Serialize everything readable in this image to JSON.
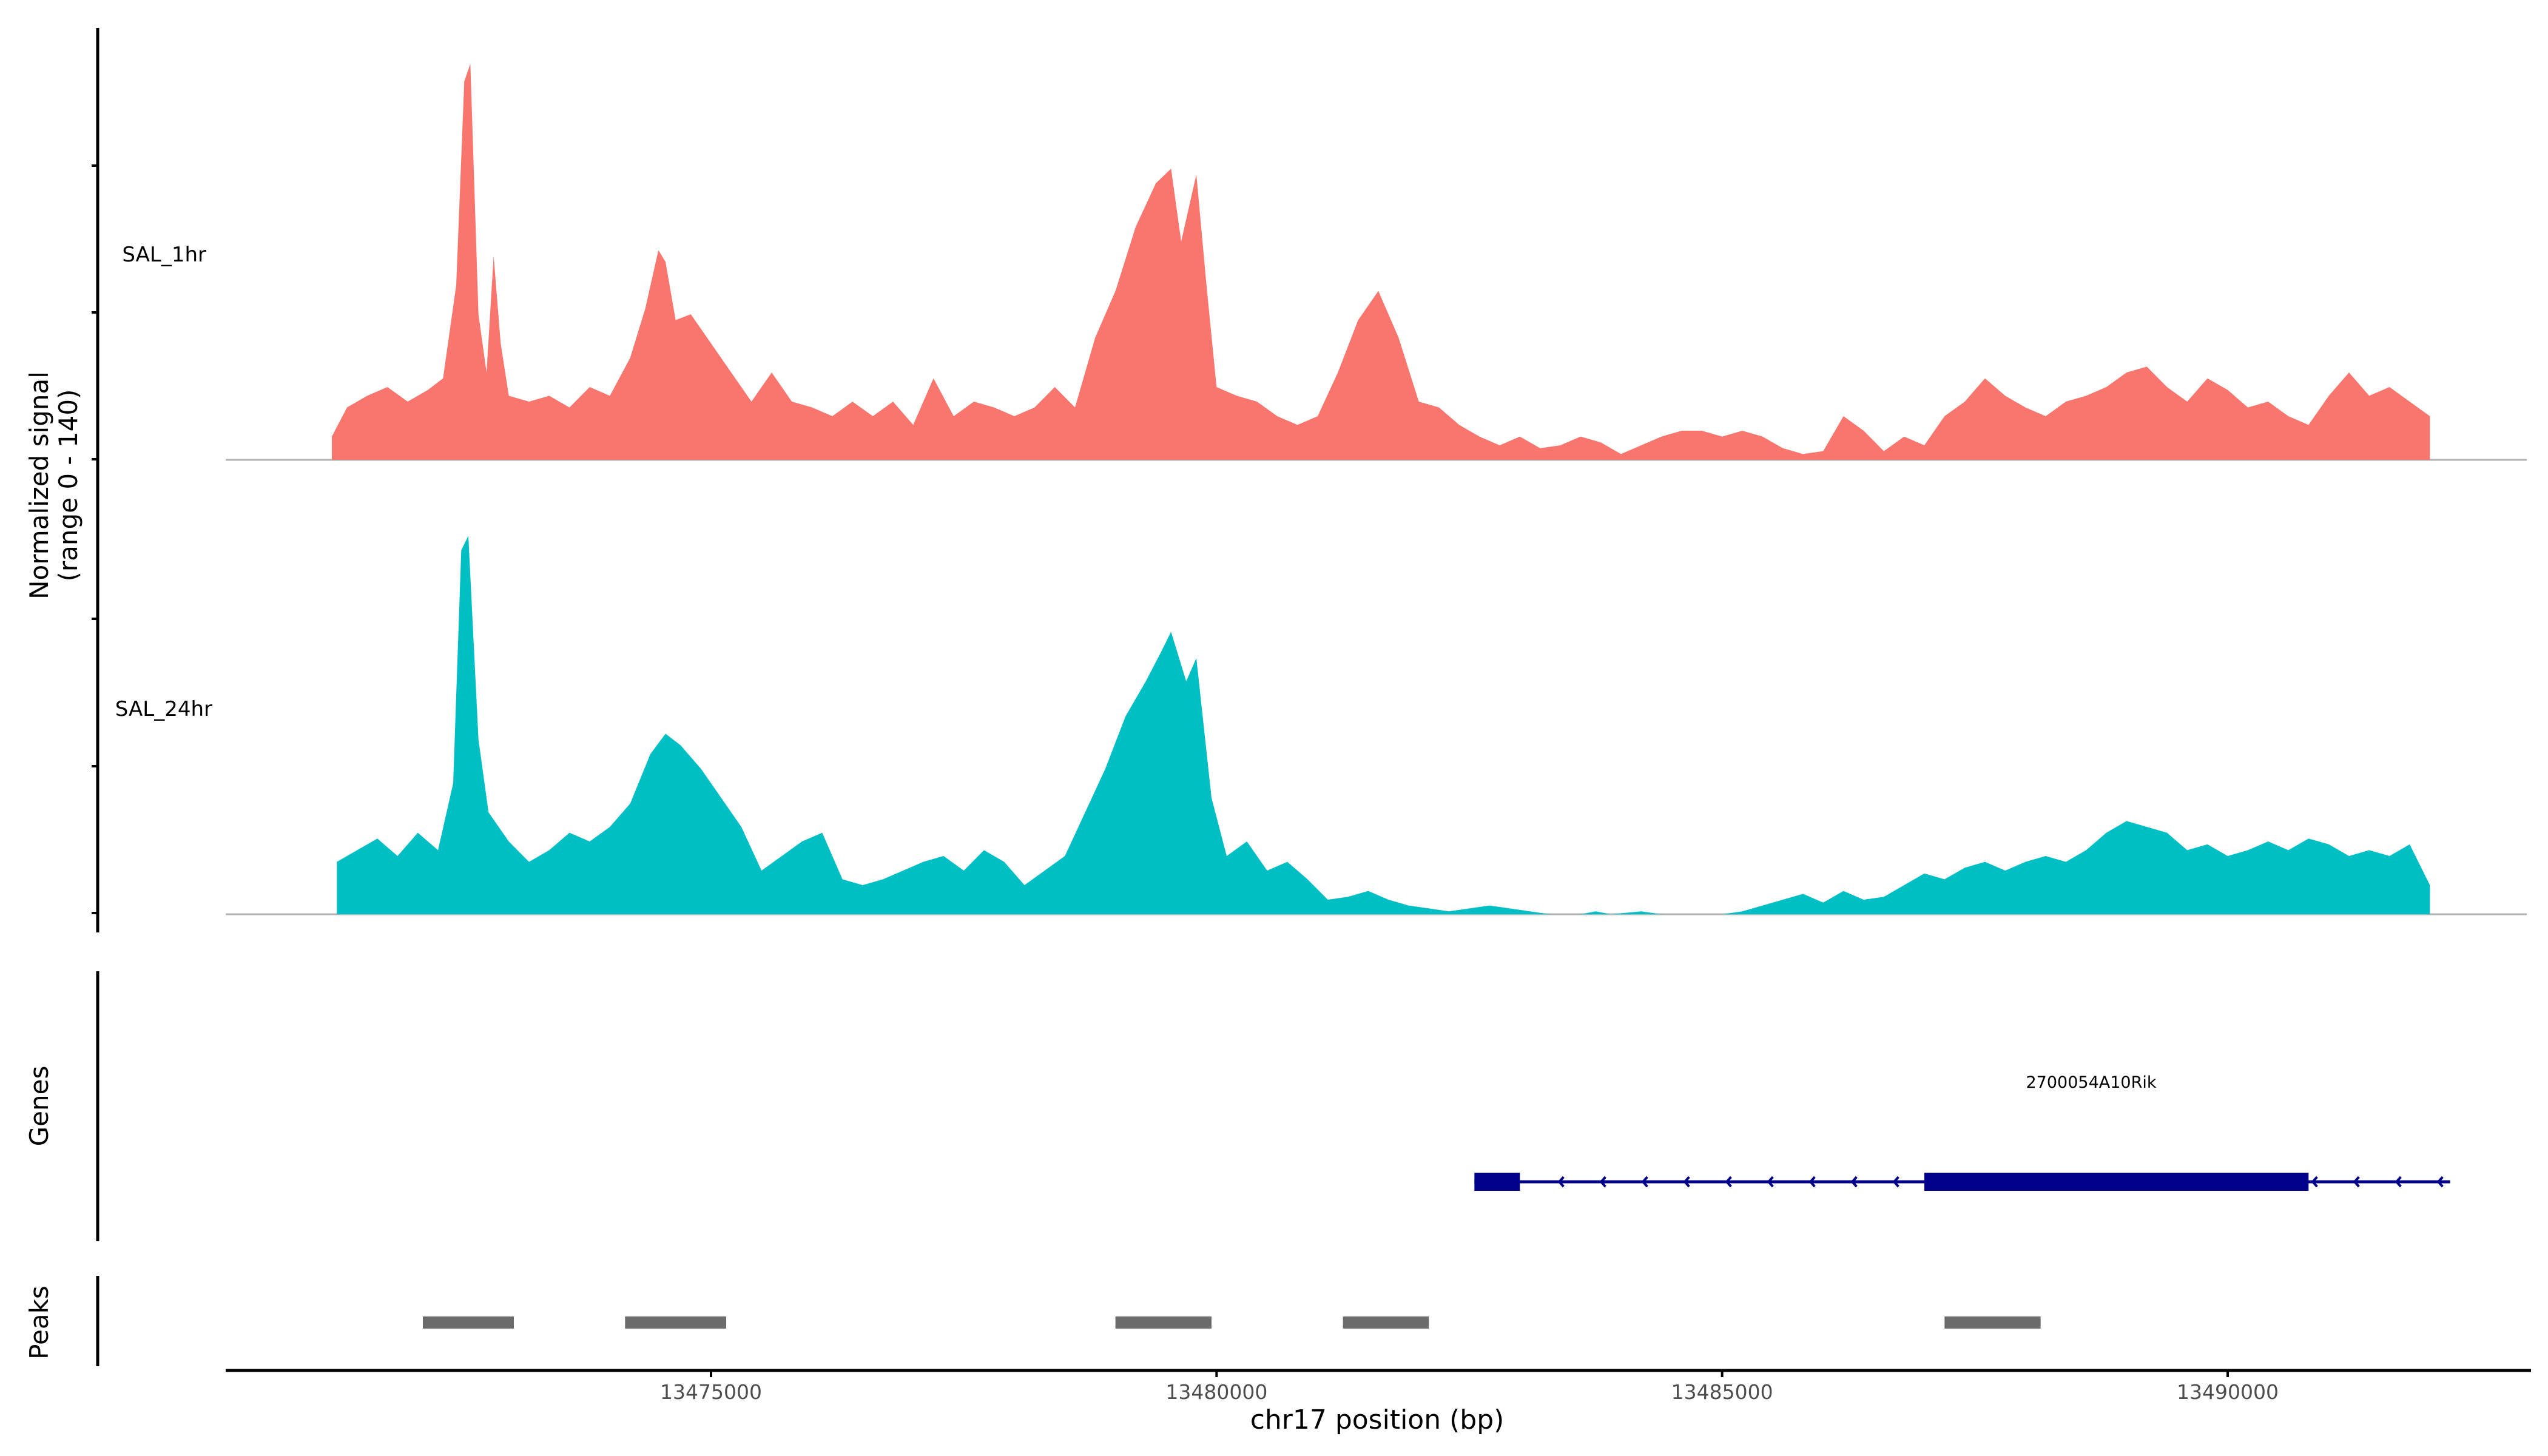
{
  "chart_data": {
    "type": "area",
    "title": "",
    "ylabel_line1": "Normalized signal",
    "ylabel_line2": "(range 0 - 140)",
    "xlabel": "chr17 position (bp)",
    "xlim": [
      13470200,
      13493000
    ],
    "ylim": [
      0,
      140
    ],
    "x_ticks": [
      13475000,
      13480000,
      13485000,
      13490000
    ],
    "x_tick_labels": [
      "13475000",
      "13480000",
      "13485000",
      "13490000"
    ],
    "series": [
      {
        "name": "SAL_1hr",
        "color": "#F8766D",
        "x_start": 13471250,
        "x_end": 13492000,
        "points": [
          [
            13471250,
            8
          ],
          [
            13471400,
            18
          ],
          [
            13471600,
            22
          ],
          [
            13471800,
            25
          ],
          [
            13472000,
            20
          ],
          [
            13472200,
            24
          ],
          [
            13472350,
            28
          ],
          [
            13472480,
            60
          ],
          [
            13472560,
            130
          ],
          [
            13472620,
            136
          ],
          [
            13472700,
            50
          ],
          [
            13472780,
            30
          ],
          [
            13472850,
            70
          ],
          [
            13472920,
            40
          ],
          [
            13473000,
            22
          ],
          [
            13473200,
            20
          ],
          [
            13473400,
            22
          ],
          [
            13473600,
            18
          ],
          [
            13473800,
            25
          ],
          [
            13474000,
            22
          ],
          [
            13474200,
            35
          ],
          [
            13474350,
            52
          ],
          [
            13474480,
            72
          ],
          [
            13474550,
            68
          ],
          [
            13474650,
            48
          ],
          [
            13474800,
            50
          ],
          [
            13475000,
            40
          ],
          [
            13475200,
            30
          ],
          [
            13475400,
            20
          ],
          [
            13475600,
            30
          ],
          [
            13475800,
            20
          ],
          [
            13476000,
            18
          ],
          [
            13476200,
            15
          ],
          [
            13476400,
            20
          ],
          [
            13476600,
            15
          ],
          [
            13476800,
            20
          ],
          [
            13477000,
            12
          ],
          [
            13477200,
            28
          ],
          [
            13477400,
            15
          ],
          [
            13477600,
            20
          ],
          [
            13477800,
            18
          ],
          [
            13478000,
            15
          ],
          [
            13478200,
            18
          ],
          [
            13478400,
            25
          ],
          [
            13478600,
            18
          ],
          [
            13478800,
            42
          ],
          [
            13479000,
            58
          ],
          [
            13479200,
            80
          ],
          [
            13479400,
            95
          ],
          [
            13479550,
            100
          ],
          [
            13479650,
            75
          ],
          [
            13479800,
            98
          ],
          [
            13479900,
            60
          ],
          [
            13480000,
            25
          ],
          [
            13480200,
            22
          ],
          [
            13480400,
            20
          ],
          [
            13480600,
            15
          ],
          [
            13480800,
            12
          ],
          [
            13481000,
            15
          ],
          [
            13481200,
            30
          ],
          [
            13481400,
            48
          ],
          [
            13481600,
            58
          ],
          [
            13481800,
            42
          ],
          [
            13482000,
            20
          ],
          [
            13482200,
            18
          ],
          [
            13482400,
            12
          ],
          [
            13482600,
            8
          ],
          [
            13482800,
            5
          ],
          [
            13483000,
            8
          ],
          [
            13483200,
            4
          ],
          [
            13483400,
            5
          ],
          [
            13483600,
            8
          ],
          [
            13483800,
            6
          ],
          [
            13484000,
            2
          ],
          [
            13484200,
            5
          ],
          [
            13484400,
            8
          ],
          [
            13484600,
            10
          ],
          [
            13484800,
            10
          ],
          [
            13485000,
            8
          ],
          [
            13485200,
            10
          ],
          [
            13485400,
            8
          ],
          [
            13485600,
            4
          ],
          [
            13485800,
            2
          ],
          [
            13486000,
            3
          ],
          [
            13486200,
            15
          ],
          [
            13486400,
            10
          ],
          [
            13486600,
            3
          ],
          [
            13486800,
            8
          ],
          [
            13487000,
            5
          ],
          [
            13487200,
            15
          ],
          [
            13487400,
            20
          ],
          [
            13487600,
            28
          ],
          [
            13487800,
            22
          ],
          [
            13488000,
            18
          ],
          [
            13488200,
            15
          ],
          [
            13488400,
            20
          ],
          [
            13488600,
            22
          ],
          [
            13488800,
            25
          ],
          [
            13489000,
            30
          ],
          [
            13489200,
            32
          ],
          [
            13489400,
            25
          ],
          [
            13489600,
            20
          ],
          [
            13489800,
            28
          ],
          [
            13490000,
            24
          ],
          [
            13490200,
            18
          ],
          [
            13490400,
            20
          ],
          [
            13490600,
            15
          ],
          [
            13490800,
            12
          ],
          [
            13491000,
            22
          ],
          [
            13491200,
            30
          ],
          [
            13491400,
            22
          ],
          [
            13491600,
            25
          ],
          [
            13491800,
            20
          ],
          [
            13492000,
            15
          ]
        ]
      },
      {
        "name": "SAL_24hr",
        "color": "#00BFC4",
        "x_start": 13471300,
        "x_end": 13492000,
        "points": [
          [
            13471300,
            18
          ],
          [
            13471500,
            22
          ],
          [
            13471700,
            26
          ],
          [
            13471900,
            20
          ],
          [
            13472100,
            28
          ],
          [
            13472300,
            22
          ],
          [
            13472450,
            45
          ],
          [
            13472530,
            125
          ],
          [
            13472600,
            130
          ],
          [
            13472700,
            60
          ],
          [
            13472800,
            35
          ],
          [
            13473000,
            25
          ],
          [
            13473200,
            18
          ],
          [
            13473400,
            22
          ],
          [
            13473600,
            28
          ],
          [
            13473800,
            25
          ],
          [
            13474000,
            30
          ],
          [
            13474200,
            38
          ],
          [
            13474400,
            55
          ],
          [
            13474550,
            62
          ],
          [
            13474700,
            58
          ],
          [
            13474900,
            50
          ],
          [
            13475100,
            40
          ],
          [
            13475300,
            30
          ],
          [
            13475500,
            15
          ],
          [
            13475700,
            20
          ],
          [
            13475900,
            25
          ],
          [
            13476100,
            28
          ],
          [
            13476300,
            12
          ],
          [
            13476500,
            10
          ],
          [
            13476700,
            12
          ],
          [
            13476900,
            15
          ],
          [
            13477100,
            18
          ],
          [
            13477300,
            20
          ],
          [
            13477500,
            15
          ],
          [
            13477700,
            22
          ],
          [
            13477900,
            18
          ],
          [
            13478100,
            10
          ],
          [
            13478300,
            15
          ],
          [
            13478500,
            20
          ],
          [
            13478700,
            35
          ],
          [
            13478900,
            50
          ],
          [
            13479100,
            68
          ],
          [
            13479300,
            80
          ],
          [
            13479450,
            90
          ],
          [
            13479550,
            97
          ],
          [
            13479700,
            80
          ],
          [
            13479800,
            88
          ],
          [
            13479950,
            40
          ],
          [
            13480100,
            20
          ],
          [
            13480300,
            25
          ],
          [
            13480500,
            15
          ],
          [
            13480700,
            18
          ],
          [
            13480900,
            12
          ],
          [
            13481100,
            5
          ],
          [
            13481300,
            6
          ],
          [
            13481500,
            8
          ],
          [
            13481700,
            5
          ],
          [
            13481900,
            3
          ],
          [
            13482100,
            2
          ],
          [
            13482300,
            1
          ],
          [
            13482500,
            2
          ],
          [
            13482700,
            3
          ],
          [
            13482900,
            2
          ],
          [
            13483100,
            1
          ],
          [
            13483300,
            0
          ],
          [
            13483600,
            0
          ],
          [
            13483750,
            1
          ],
          [
            13483900,
            0
          ],
          [
            13484200,
            1
          ],
          [
            13484400,
            0
          ],
          [
            13485000,
            0
          ],
          [
            13485200,
            1
          ],
          [
            13485400,
            3
          ],
          [
            13485600,
            5
          ],
          [
            13485800,
            7
          ],
          [
            13486000,
            4
          ],
          [
            13486200,
            8
          ],
          [
            13486400,
            5
          ],
          [
            13486600,
            6
          ],
          [
            13486800,
            10
          ],
          [
            13487000,
            14
          ],
          [
            13487200,
            12
          ],
          [
            13487400,
            16
          ],
          [
            13487600,
            18
          ],
          [
            13487800,
            15
          ],
          [
            13488000,
            18
          ],
          [
            13488200,
            20
          ],
          [
            13488400,
            18
          ],
          [
            13488600,
            22
          ],
          [
            13488800,
            28
          ],
          [
            13489000,
            32
          ],
          [
            13489200,
            30
          ],
          [
            13489400,
            28
          ],
          [
            13489600,
            22
          ],
          [
            13489800,
            24
          ],
          [
            13490000,
            20
          ],
          [
            13490200,
            22
          ],
          [
            13490400,
            25
          ],
          [
            13490600,
            22
          ],
          [
            13490800,
            26
          ],
          [
            13491000,
            24
          ],
          [
            13491200,
            20
          ],
          [
            13491400,
            22
          ],
          [
            13491600,
            20
          ],
          [
            13491800,
            24
          ],
          [
            13492000,
            10
          ]
        ]
      }
    ],
    "genes_label": "Genes",
    "genes": [
      {
        "name": "2700054A10Rik",
        "color": "#00008B",
        "strand": "-",
        "start": 13482550,
        "end": 13492200,
        "exons": [
          [
            13482550,
            13483000
          ],
          [
            13487000,
            13490800
          ]
        ]
      }
    ],
    "peaks_label": "Peaks",
    "peaks_color": "#6B6B6B",
    "peaks": [
      [
        13472150,
        13473050
      ],
      [
        13474150,
        13475150
      ],
      [
        13479000,
        13479950
      ],
      [
        13481250,
        13482100
      ],
      [
        13487200,
        13488150
      ]
    ]
  }
}
